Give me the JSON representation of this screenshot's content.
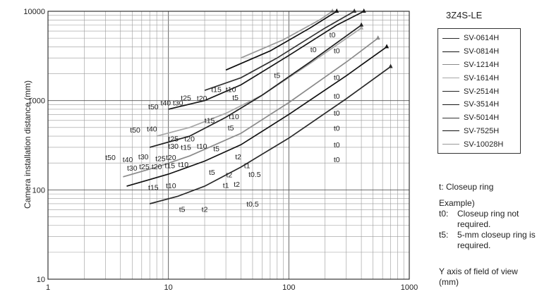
{
  "chart_data": {
    "type": "line",
    "title": "3Z4S-LE",
    "xlabel": "Y axis of field of view (mm)",
    "ylabel": "Camera installation distance (mm)",
    "x_scale": "log",
    "y_scale": "log",
    "xlim": [
      1,
      1000
    ],
    "ylim": [
      10,
      10000
    ],
    "x_ticks": [
      "1",
      "10",
      "100",
      "1000"
    ],
    "y_ticks": [
      "10",
      "100",
      "1000",
      "10000"
    ],
    "grid": true,
    "legend_position": "right",
    "series": [
      {
        "name": "SV-0614H",
        "color": "#2a2a2a",
        "points": [
          [
            7,
            70
          ],
          [
            12,
            85
          ],
          [
            20,
            110
          ],
          [
            40,
            180
          ],
          [
            100,
            380
          ],
          [
            300,
            1050
          ],
          [
            700,
            2400
          ]
        ]
      },
      {
        "name": "SV-0814H",
        "color": "#111111",
        "points": [
          [
            4.5,
            110
          ],
          [
            10,
            150
          ],
          [
            20,
            210
          ],
          [
            40,
            320
          ],
          [
            100,
            700
          ],
          [
            300,
            1900
          ],
          [
            650,
            4000
          ]
        ]
      },
      {
        "name": "SV-1214H",
        "color": "#8a8a8a",
        "points": [
          [
            4.2,
            140
          ],
          [
            8,
            180
          ],
          [
            15,
            240
          ],
          [
            40,
            430
          ],
          [
            100,
            950
          ],
          [
            300,
            2700
          ],
          [
            550,
            5000
          ]
        ]
      },
      {
        "name": "SV-1614H",
        "color": "#a6a6a6",
        "points": [
          [
            8,
            400
          ],
          [
            15,
            500
          ],
          [
            30,
            720
          ],
          [
            60,
            1150
          ],
          [
            150,
            2600
          ],
          [
            400,
            6500
          ]
        ]
      },
      {
        "name": "SV-2514H",
        "color": "#222222",
        "points": [
          [
            7,
            300
          ],
          [
            15,
            400
          ],
          [
            30,
            650
          ],
          [
            60,
            1150
          ],
          [
            150,
            2700
          ],
          [
            400,
            7000
          ]
        ]
      },
      {
        "name": "SV-3514H",
        "color": "#151515",
        "points": [
          [
            10,
            800
          ],
          [
            20,
            1000
          ],
          [
            40,
            1500
          ],
          [
            100,
            3200
          ],
          [
            250,
            7000
          ],
          [
            420,
            10000
          ]
        ]
      },
      {
        "name": "SV-5014H",
        "color": "#333333",
        "points": [
          [
            20,
            1300
          ],
          [
            40,
            1800
          ],
          [
            80,
            3000
          ],
          [
            200,
            6500
          ],
          [
            350,
            10000
          ]
        ]
      },
      {
        "name": "SV-7525H",
        "color": "#0d0d0d",
        "points": [
          [
            30,
            2200
          ],
          [
            70,
            3600
          ],
          [
            150,
            6500
          ],
          [
            250,
            10000
          ]
        ]
      },
      {
        "name": "SV-10028H",
        "color": "#999999",
        "points": [
          [
            40,
            3000
          ],
          [
            90,
            4800
          ],
          [
            180,
            8000
          ],
          [
            230,
            10000
          ]
        ]
      }
    ],
    "annotations": [
      {
        "text": "t0",
        "x": 230,
        "y": 5100
      },
      {
        "text": "t0",
        "x": 160,
        "y": 3500
      },
      {
        "text": "t0",
        "x": 250,
        "y": 3400
      },
      {
        "text": "t5",
        "x": 80,
        "y": 1800
      },
      {
        "text": "t0",
        "x": 250,
        "y": 1700
      },
      {
        "text": "t0",
        "x": 250,
        "y": 1050
      },
      {
        "text": "t0",
        "x": 250,
        "y": 680
      },
      {
        "text": "t0",
        "x": 250,
        "y": 460
      },
      {
        "text": "t0",
        "x": 250,
        "y": 300
      },
      {
        "text": "t0",
        "x": 250,
        "y": 205
      },
      {
        "text": "t15",
        "x": 25,
        "y": 1250
      },
      {
        "text": "t10",
        "x": 33,
        "y": 1250
      },
      {
        "text": "t5",
        "x": 36,
        "y": 1010
      },
      {
        "text": "t25",
        "x": 14,
        "y": 1000
      },
      {
        "text": "t20",
        "x": 19,
        "y": 990
      },
      {
        "text": "t50",
        "x": 7.5,
        "y": 800
      },
      {
        "text": "t40",
        "x": 9.5,
        "y": 880
      },
      {
        "text": "t30",
        "x": 12,
        "y": 880
      },
      {
        "text": "t50",
        "x": 5.3,
        "y": 440
      },
      {
        "text": "t40",
        "x": 7.3,
        "y": 450
      },
      {
        "text": "t15",
        "x": 22,
        "y": 560
      },
      {
        "text": "t10",
        "x": 35,
        "y": 620
      },
      {
        "text": "t5",
        "x": 33,
        "y": 465
      },
      {
        "text": "t25",
        "x": 11,
        "y": 350
      },
      {
        "text": "t20",
        "x": 15,
        "y": 350
      },
      {
        "text": "t30",
        "x": 11,
        "y": 290
      },
      {
        "text": "t15",
        "x": 14,
        "y": 280
      },
      {
        "text": "t10",
        "x": 19,
        "y": 290
      },
      {
        "text": "t5",
        "x": 25,
        "y": 270
      },
      {
        "text": "t50",
        "x": 3.3,
        "y": 215
      },
      {
        "text": "t40",
        "x": 4.6,
        "y": 205
      },
      {
        "text": "t30",
        "x": 6.2,
        "y": 220
      },
      {
        "text": "t25",
        "x": 8.6,
        "y": 210
      },
      {
        "text": "t20",
        "x": 10.5,
        "y": 215
      },
      {
        "text": "t2",
        "x": 38,
        "y": 220
      },
      {
        "text": "t30",
        "x": 5.0,
        "y": 165
      },
      {
        "text": "t25",
        "x": 6.3,
        "y": 170
      },
      {
        "text": "t20",
        "x": 8.0,
        "y": 170
      },
      {
        "text": "t15",
        "x": 10.3,
        "y": 175
      },
      {
        "text": "t10",
        "x": 13.3,
        "y": 180
      },
      {
        "text": "t5",
        "x": 23,
        "y": 148
      },
      {
        "text": "t1",
        "x": 45,
        "y": 175
      },
      {
        "text": "t2",
        "x": 32,
        "y": 138
      },
      {
        "text": "t0.5",
        "x": 52,
        "y": 140
      },
      {
        "text": "t1",
        "x": 30,
        "y": 105
      },
      {
        "text": "t2",
        "x": 37,
        "y": 108
      },
      {
        "text": "t15",
        "x": 7.5,
        "y": 100
      },
      {
        "text": "t10",
        "x": 10.5,
        "y": 104
      },
      {
        "text": "t5",
        "x": 13,
        "y": 57
      },
      {
        "text": "t2",
        "x": 20,
        "y": 57
      },
      {
        "text": "t0.5",
        "x": 50,
        "y": 65
      }
    ]
  },
  "legend": {
    "title": "3Z4S-LE",
    "items": [
      {
        "label": "SV-0614H",
        "color": "#2a2a2a"
      },
      {
        "label": "SV-0814H",
        "color": "#111111"
      },
      {
        "label": "SV-1214H",
        "color": "#8a8a8a"
      },
      {
        "label": "SV-1614H",
        "color": "#a6a6a6"
      },
      {
        "label": "SV-2514H",
        "color": "#222222"
      },
      {
        "label": "SV-3514H",
        "color": "#151515"
      },
      {
        "label": "SV-5014H",
        "color": "#333333"
      },
      {
        "label": "SV-7525H",
        "color": "#0d0d0d"
      },
      {
        "label": "SV-10028H",
        "color": "#999999"
      }
    ]
  },
  "notes": {
    "ring_note": "t: Closeup ring",
    "example_title": "Example)",
    "example_lines": [
      {
        "key": "t0:",
        "text": "Closeup ring not required."
      },
      {
        "key": "t5:",
        "text": "5-mm closeup ring is required."
      }
    ],
    "x_axis_title": "Y axis of field of view (mm)"
  }
}
